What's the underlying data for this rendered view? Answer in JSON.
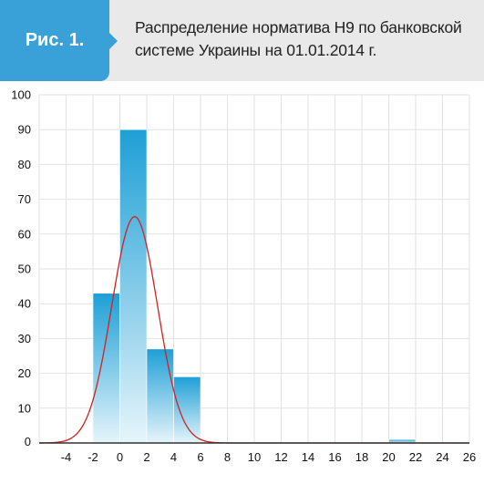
{
  "header": {
    "badge": "Рис. 1.",
    "title_line1": "Распределение норматива Н9 по банковской",
    "title_line2": "системе Украины на 01.01.2014 г."
  },
  "colors": {
    "badge": "#3aa0d8",
    "header_bg": "#e9e9e9",
    "bar_top": "#1e9fd6",
    "bar_bottom": "#e6f5fb",
    "curve": "#d42020",
    "grid": "#e2e2e2"
  },
  "chart_data": {
    "type": "bar",
    "title": "Распределение норматива Н9 по банковской системе Украины на 01.01.2014 г.",
    "xlabel": "",
    "ylabel": "",
    "xlim": [
      -6,
      26
    ],
    "ylim": [
      0,
      100
    ],
    "x_ticks": [
      -4,
      -2,
      0,
      2,
      4,
      6,
      8,
      10,
      12,
      14,
      16,
      18,
      20,
      22,
      24,
      26
    ],
    "y_ticks": [
      0,
      10,
      20,
      30,
      40,
      50,
      60,
      70,
      80,
      90,
      100
    ],
    "grid": true,
    "bins": [
      {
        "x0": -2,
        "x1": 0,
        "value": 43
      },
      {
        "x0": 0,
        "x1": 2,
        "value": 90
      },
      {
        "x0": 2,
        "x1": 4,
        "value": 27
      },
      {
        "x0": 4,
        "x1": 6,
        "value": 19
      },
      {
        "x0": 20,
        "x1": 22,
        "value": 1
      }
    ],
    "curve": {
      "type": "normal",
      "mean": 1.1,
      "sd": 1.7,
      "peak": 65,
      "x_range": [
        -6,
        26
      ]
    }
  }
}
